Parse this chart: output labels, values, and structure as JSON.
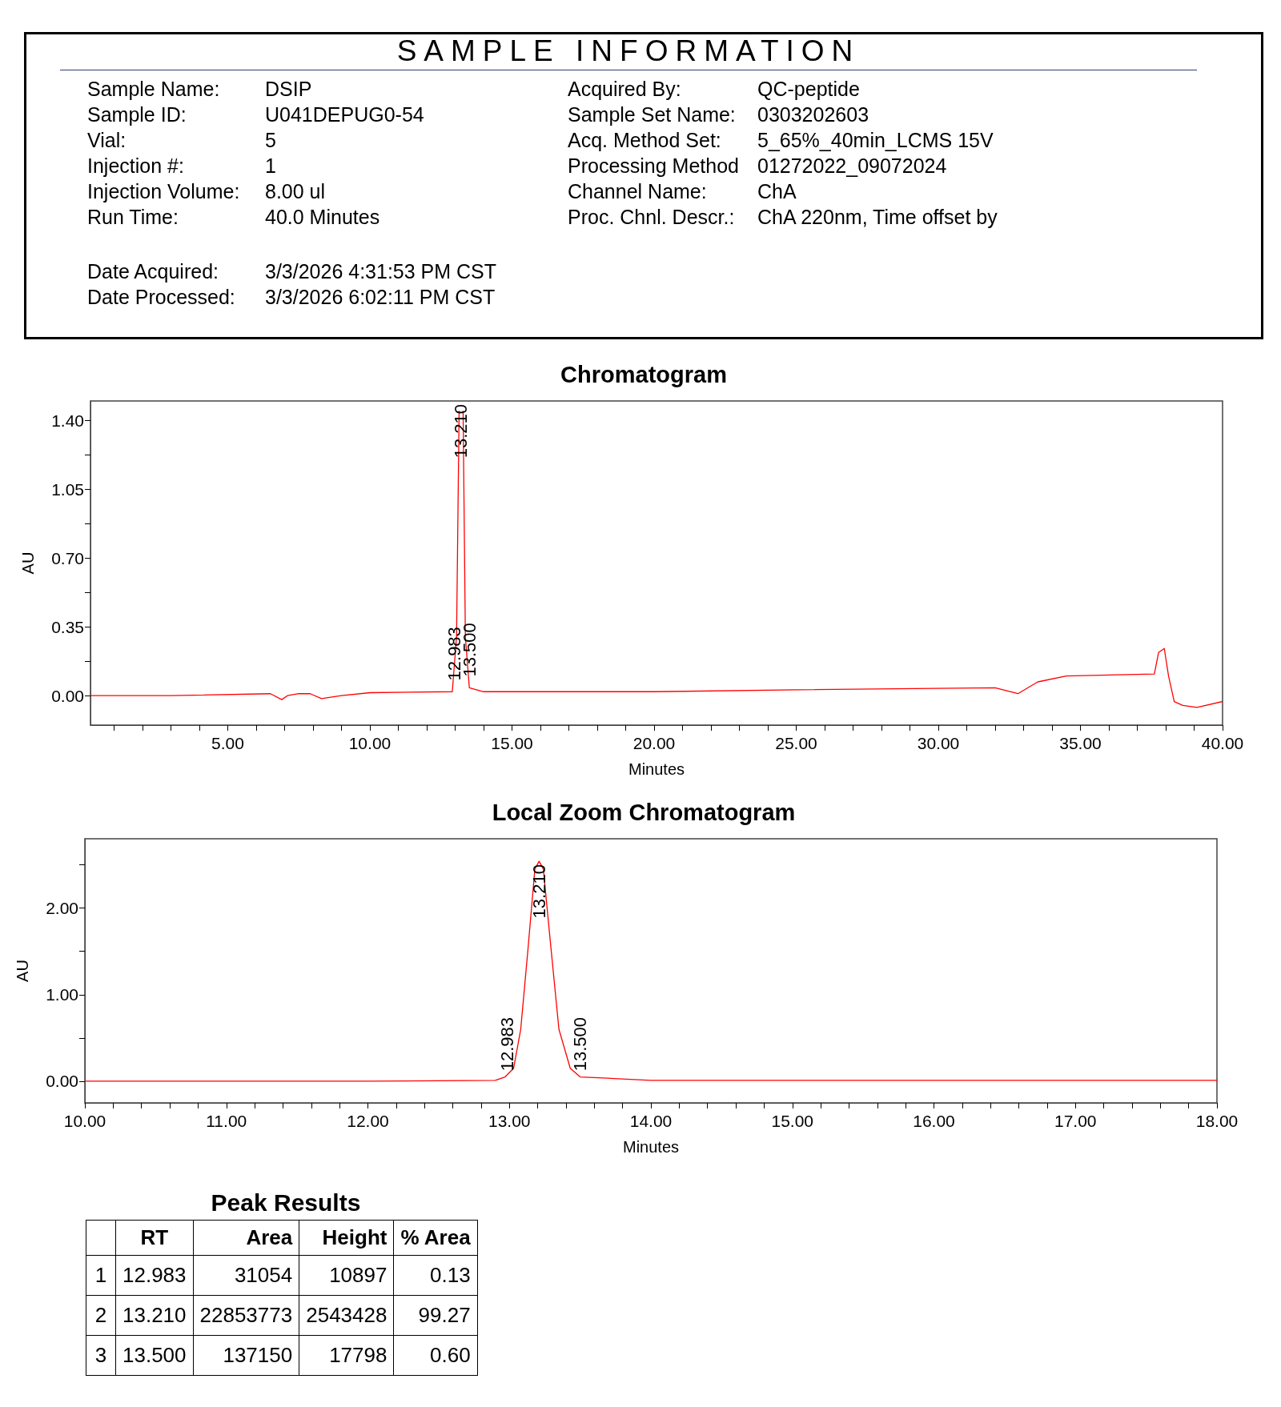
{
  "chart_data": [
    {
      "type": "other",
      "title": "SAMPLE INFORMATION",
      "annotations": [
        "Sample Name:",
        "DSIP",
        "Acquired By:",
        "QC-peptide",
        "Sample ID:",
        "U041DEPUG0-54",
        "Sample Set Name:",
        "0303202603",
        "Vial:",
        "5",
        "Acq. Method Set:",
        "5_65%_40min_LCMS 15V",
        "Injection #:",
        "1",
        "Processing Method",
        "01272022_09072024",
        "Injection Volume:",
        "8.00 ul",
        "Channel Name:",
        "ChA",
        "Run Time:",
        "40.0 Minutes",
        "Proc. Chnl. Descr.:",
        "ChA 220nm, Time offset by"
      ]
    },
    {
      "type": "other",
      "annotations": [
        "Date Acquired:",
        "3/3/2026 4:31:53 PM CST",
        "Date Processed:",
        "3/3/2026 6:02:11 PM CST"
      ]
    },
    {
      "type": "line",
      "title": "Chromatogram",
      "xlabel": "Minutes",
      "ylabel": "AU",
      "marker": "none",
      "grid": false,
      "x": [
        0.17,
        3,
        6.5,
        6.9,
        7.1,
        7.5,
        7.9,
        8.3,
        9,
        10,
        12.9,
        13.05,
        13.14,
        13.21,
        13.28,
        13.36,
        13.5,
        14,
        20,
        25,
        32,
        32.8,
        33.5,
        34.5,
        37.6,
        37.75,
        37.95,
        38.1,
        38.3,
        38.6,
        39.1,
        40
      ],
      "series": [
        {
          "color": "#ff0000",
          "values": [
            0,
            0,
            0.01,
            -0.02,
            0,
            0.01,
            0.01,
            -0.015,
            0,
            0.015,
            0.02,
            0.3,
            1.45,
            null,
            1.45,
            0.3,
            0.04,
            0.02,
            0.02,
            0.03,
            0.04,
            0.01,
            0.07,
            0.1,
            0.11,
            0.22,
            0.24,
            0.1,
            -0.03,
            -0.05,
            -0.06,
            -0.03
          ]
        }
      ],
      "xlim": [
        0.17,
        40
      ],
      "ylim": [
        -0.15,
        1.5
      ],
      "xticks": [
        {
          "value": 1,
          "label": null
        },
        {
          "value": 2,
          "label": null
        },
        {
          "value": 3,
          "label": null
        },
        {
          "value": 4,
          "label": null
        },
        {
          "value": 5,
          "label": "5.00"
        },
        {
          "value": 6,
          "label": null
        },
        {
          "value": 7,
          "label": null
        },
        {
          "value": 8,
          "label": null
        },
        {
          "value": 9,
          "label": null
        },
        {
          "value": 10,
          "label": "10.00"
        },
        {
          "value": 11,
          "label": null
        },
        {
          "value": 12,
          "label": null
        },
        {
          "value": 13,
          "label": null
        },
        {
          "value": 14,
          "label": null
        },
        {
          "value": 15,
          "label": "15.00"
        },
        {
          "value": 16,
          "label": null
        },
        {
          "value": 17,
          "label": null
        },
        {
          "value": 18,
          "label": null
        },
        {
          "value": 19,
          "label": null
        },
        {
          "value": 20,
          "label": "20.00"
        },
        {
          "value": 21,
          "label": null
        },
        {
          "value": 22,
          "label": null
        },
        {
          "value": 23,
          "label": null
        },
        {
          "value": 24,
          "label": null
        },
        {
          "value": 25,
          "label": "25.00"
        },
        {
          "value": 26,
          "label": null
        },
        {
          "value": 27,
          "label": null
        },
        {
          "value": 28,
          "label": null
        },
        {
          "value": 29,
          "label": null
        },
        {
          "value": 30,
          "label": "30.00"
        },
        {
          "value": 31,
          "label": null
        },
        {
          "value": 32,
          "label": null
        },
        {
          "value": 33,
          "label": null
        },
        {
          "value": 34,
          "label": null
        },
        {
          "value": 35,
          "label": "35.00"
        },
        {
          "value": 36,
          "label": null
        },
        {
          "value": 37,
          "label": null
        },
        {
          "value": 38,
          "label": null
        },
        {
          "value": 39,
          "label": null
        },
        {
          "value": 40,
          "label": "40.00"
        }
      ],
      "yticks": [
        {
          "value": 0,
          "label": "0.00"
        },
        {
          "value": 0.175,
          "label": null
        },
        {
          "value": 0.35,
          "label": "0.35"
        },
        {
          "value": 0.525,
          "label": null
        },
        {
          "value": 0.7,
          "label": "0.70"
        },
        {
          "value": 0.875,
          "label": null
        },
        {
          "value": 1.05,
          "label": "1.05"
        },
        {
          "value": 1.225,
          "label": null
        },
        {
          "value": 1.4,
          "label": "1.40"
        }
      ],
      "annotations": [
        {
          "text": "12.983",
          "x": 12.983,
          "y": 0.06
        },
        {
          "text": "13.210",
          "x": 13.21
        },
        {
          "text": "13.500",
          "x": 13.5,
          "y": 0.08
        }
      ]
    },
    {
      "type": "line",
      "title": "Local Zoom Chromatogram",
      "xlabel": "Minutes",
      "ylabel": "AU",
      "marker": "none",
      "grid": false,
      "x": [
        10,
        12,
        12.9,
        12.97,
        13.03,
        13.08,
        13.13,
        13.18,
        13.21,
        13.24,
        13.29,
        13.35,
        13.43,
        13.5,
        14,
        16,
        18
      ],
      "series": [
        {
          "color": "#ff0000",
          "values": [
            0,
            0,
            0.01,
            0.05,
            0.15,
            0.6,
            1.5,
            2.45,
            2.54,
            2.45,
            1.6,
            0.6,
            0.15,
            0.05,
            0.01,
            0.01,
            0.01
          ]
        }
      ],
      "xlim": [
        10,
        18
      ],
      "ylim": [
        -0.25,
        2.8
      ],
      "xticks": [
        {
          "value": 10,
          "label": "10.00"
        },
        {
          "value": 10.2,
          "label": null
        },
        {
          "value": 10.4,
          "label": null
        },
        {
          "value": 10.6,
          "label": null
        },
        {
          "value": 10.8,
          "label": null
        },
        {
          "value": 11,
          "label": "11.00"
        },
        {
          "value": 11.2,
          "label": null
        },
        {
          "value": 11.4,
          "label": null
        },
        {
          "value": 11.6,
          "label": null
        },
        {
          "value": 11.8,
          "label": null
        },
        {
          "value": 12,
          "label": "12.00"
        },
        {
          "value": 12.2,
          "label": null
        },
        {
          "value": 12.4,
          "label": null
        },
        {
          "value": 12.6,
          "label": null
        },
        {
          "value": 12.8,
          "label": null
        },
        {
          "value": 13,
          "label": "13.00"
        },
        {
          "value": 13.2,
          "label": null
        },
        {
          "value": 13.4,
          "label": null
        },
        {
          "value": 13.6,
          "label": null
        },
        {
          "value": 13.8,
          "label": null
        },
        {
          "value": 14,
          "label": "14.00"
        },
        {
          "value": 14.2,
          "label": null
        },
        {
          "value": 14.4,
          "label": null
        },
        {
          "value": 14.6,
          "label": null
        },
        {
          "value": 14.8,
          "label": null
        },
        {
          "value": 15,
          "label": "15.00"
        },
        {
          "value": 15.2,
          "label": null
        },
        {
          "value": 15.4,
          "label": null
        },
        {
          "value": 15.6,
          "label": null
        },
        {
          "value": 15.8,
          "label": null
        },
        {
          "value": 16,
          "label": "16.00"
        },
        {
          "value": 16.2,
          "label": null
        },
        {
          "value": 16.4,
          "label": null
        },
        {
          "value": 16.6,
          "label": null
        },
        {
          "value": 16.8,
          "label": null
        },
        {
          "value": 17,
          "label": "17.00"
        },
        {
          "value": 17.2,
          "label": null
        },
        {
          "value": 17.4,
          "label": null
        },
        {
          "value": 17.6,
          "label": null
        },
        {
          "value": 17.8,
          "label": null
        },
        {
          "value": 18,
          "label": "18.00"
        }
      ],
      "yticks": [
        {
          "value": 0,
          "label": "0.00"
        },
        {
          "value": 0.5,
          "label": null
        },
        {
          "value": 1,
          "label": "1.00"
        },
        {
          "value": 1.5,
          "label": null
        },
        {
          "value": 2,
          "label": "2.00"
        },
        {
          "value": 2.5,
          "label": null
        }
      ],
      "annotations": [
        {
          "text": "12.983",
          "x": 12.983,
          "y": 0.08
        },
        {
          "text": "13.210",
          "x": 13.21,
          "y": 2.54
        },
        {
          "text": "13.500",
          "x": 13.5,
          "y": 0.08
        }
      ]
    },
    {
      "type": "other",
      "title": "Peak Results",
      "categories": [
        "1",
        "2",
        "3"
      ],
      "series": [
        {
          "name": "RT",
          "values": [
            12.983,
            13.21,
            13.5
          ],
          "value_labels": [
            "12.983",
            "13.210",
            "13.500"
          ]
        },
        {
          "name": "Area",
          "values": [
            31054,
            22853773,
            137150
          ],
          "value_labels": [
            "31054",
            "22853773",
            "137150"
          ]
        },
        {
          "name": "Height",
          "values": [
            10897,
            2543428,
            17798
          ],
          "value_labels": [
            "10897",
            "2543428",
            "17798"
          ]
        },
        {
          "name": "% Area",
          "values": [
            0.13,
            99.27,
            0.6
          ],
          "value_labels": [
            "0.13",
            "99.27",
            "0.60"
          ]
        }
      ]
    }
  ]
}
